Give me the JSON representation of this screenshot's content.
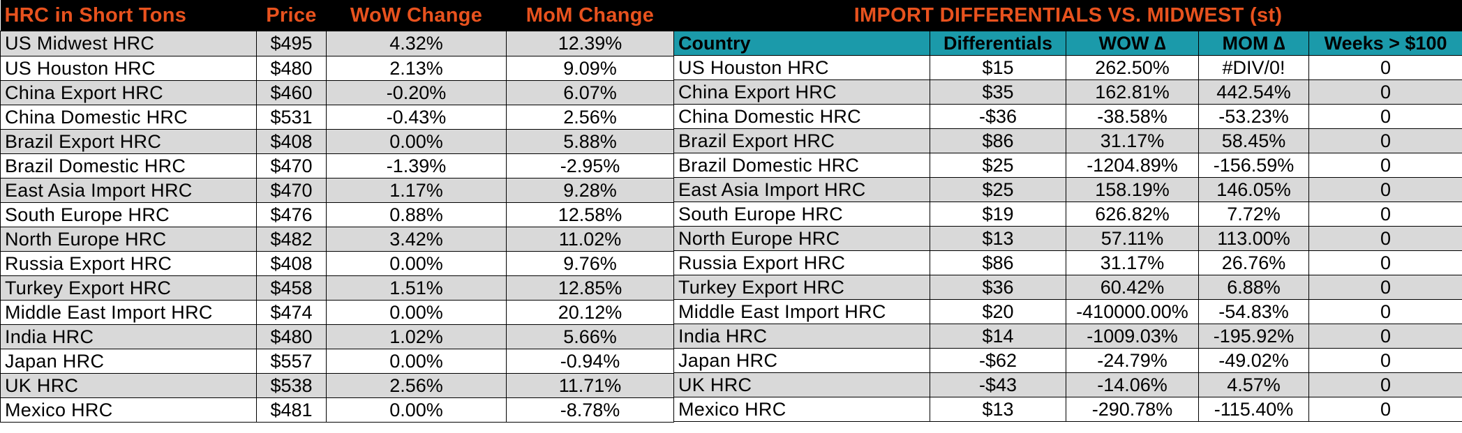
{
  "left": {
    "headers": [
      "HRC in Short Tons",
      "Price",
      "WoW Change",
      "MoM Change"
    ],
    "rows": [
      [
        "US Midwest HRC",
        "$495",
        "4.32%",
        "12.39%"
      ],
      [
        "US Houston HRC",
        "$480",
        "2.13%",
        "9.09%"
      ],
      [
        "China Export HRC",
        "$460",
        "-0.20%",
        "6.07%"
      ],
      [
        "China Domestic HRC",
        "$531",
        "-0.43%",
        "2.56%"
      ],
      [
        "Brazil Export HRC",
        "$408",
        "0.00%",
        "5.88%"
      ],
      [
        "Brazil Domestic HRC",
        "$470",
        "-1.39%",
        "-2.95%"
      ],
      [
        "East Asia Import HRC",
        "$470",
        "1.17%",
        "9.28%"
      ],
      [
        "South Europe HRC",
        "$476",
        "0.88%",
        "12.58%"
      ],
      [
        "North Europe HRC",
        "$482",
        "3.42%",
        "11.02%"
      ],
      [
        "Russia Export HRC",
        "$408",
        "0.00%",
        "9.76%"
      ],
      [
        "Turkey Export HRC",
        "$458",
        "1.51%",
        "12.85%"
      ],
      [
        "Middle East Import HRC",
        "$474",
        "0.00%",
        "20.12%"
      ],
      [
        "India HRC",
        "$480",
        "1.02%",
        "5.66%"
      ],
      [
        "Japan HRC",
        "$557",
        "0.00%",
        "-0.94%"
      ],
      [
        "UK HRC",
        "$538",
        "2.56%",
        "11.71%"
      ],
      [
        "Mexico HRC",
        "$481",
        "0.00%",
        "-8.78%"
      ]
    ]
  },
  "right": {
    "title": "IMPORT DIFFERENTIALS VS. MIDWEST (st)",
    "headers": [
      "Country",
      "Differentials",
      "WOW ∆",
      "MOM ∆",
      "Weeks > $100"
    ],
    "rows": [
      [
        "US Houston HRC",
        "$15",
        "262.50%",
        "#DIV/0!",
        "0"
      ],
      [
        "China Export HRC",
        "$35",
        "162.81%",
        "442.54%",
        "0"
      ],
      [
        "China Domestic HRC",
        "-$36",
        "-38.58%",
        "-53.23%",
        "0"
      ],
      [
        "Brazil Export HRC",
        "$86",
        "31.17%",
        "58.45%",
        "0"
      ],
      [
        "Brazil Domestic HRC",
        "$25",
        "-1204.89%",
        "-156.59%",
        "0"
      ],
      [
        "East Asia Import HRC",
        "$25",
        "158.19%",
        "146.05%",
        "0"
      ],
      [
        "South Europe HRC",
        "$19",
        "626.82%",
        "7.72%",
        "0"
      ],
      [
        "North Europe HRC",
        "$13",
        "57.11%",
        "113.00%",
        "0"
      ],
      [
        "Russia Export HRC",
        "$86",
        "31.17%",
        "26.76%",
        "0"
      ],
      [
        "Turkey Export HRC",
        "$36",
        "60.42%",
        "6.88%",
        "0"
      ],
      [
        "Middle East Import HRC",
        "$20",
        "-410000.00%",
        "-54.83%",
        "0"
      ],
      [
        "India HRC",
        "$14",
        "-1009.03%",
        "-195.92%",
        "0"
      ],
      [
        "Japan HRC",
        "-$62",
        "-24.79%",
        "-49.02%",
        "0"
      ],
      [
        "UK HRC",
        "-$43",
        "-14.06%",
        "4.57%",
        "0"
      ],
      [
        "Mexico HRC",
        "$13",
        "-290.78%",
        "-115.40%",
        "0"
      ]
    ]
  },
  "colors": {
    "title_text": "#e8521e",
    "title_bg": "#000000",
    "header_teal": "#1b9aaa",
    "row_alt": "#d9d9d9"
  }
}
